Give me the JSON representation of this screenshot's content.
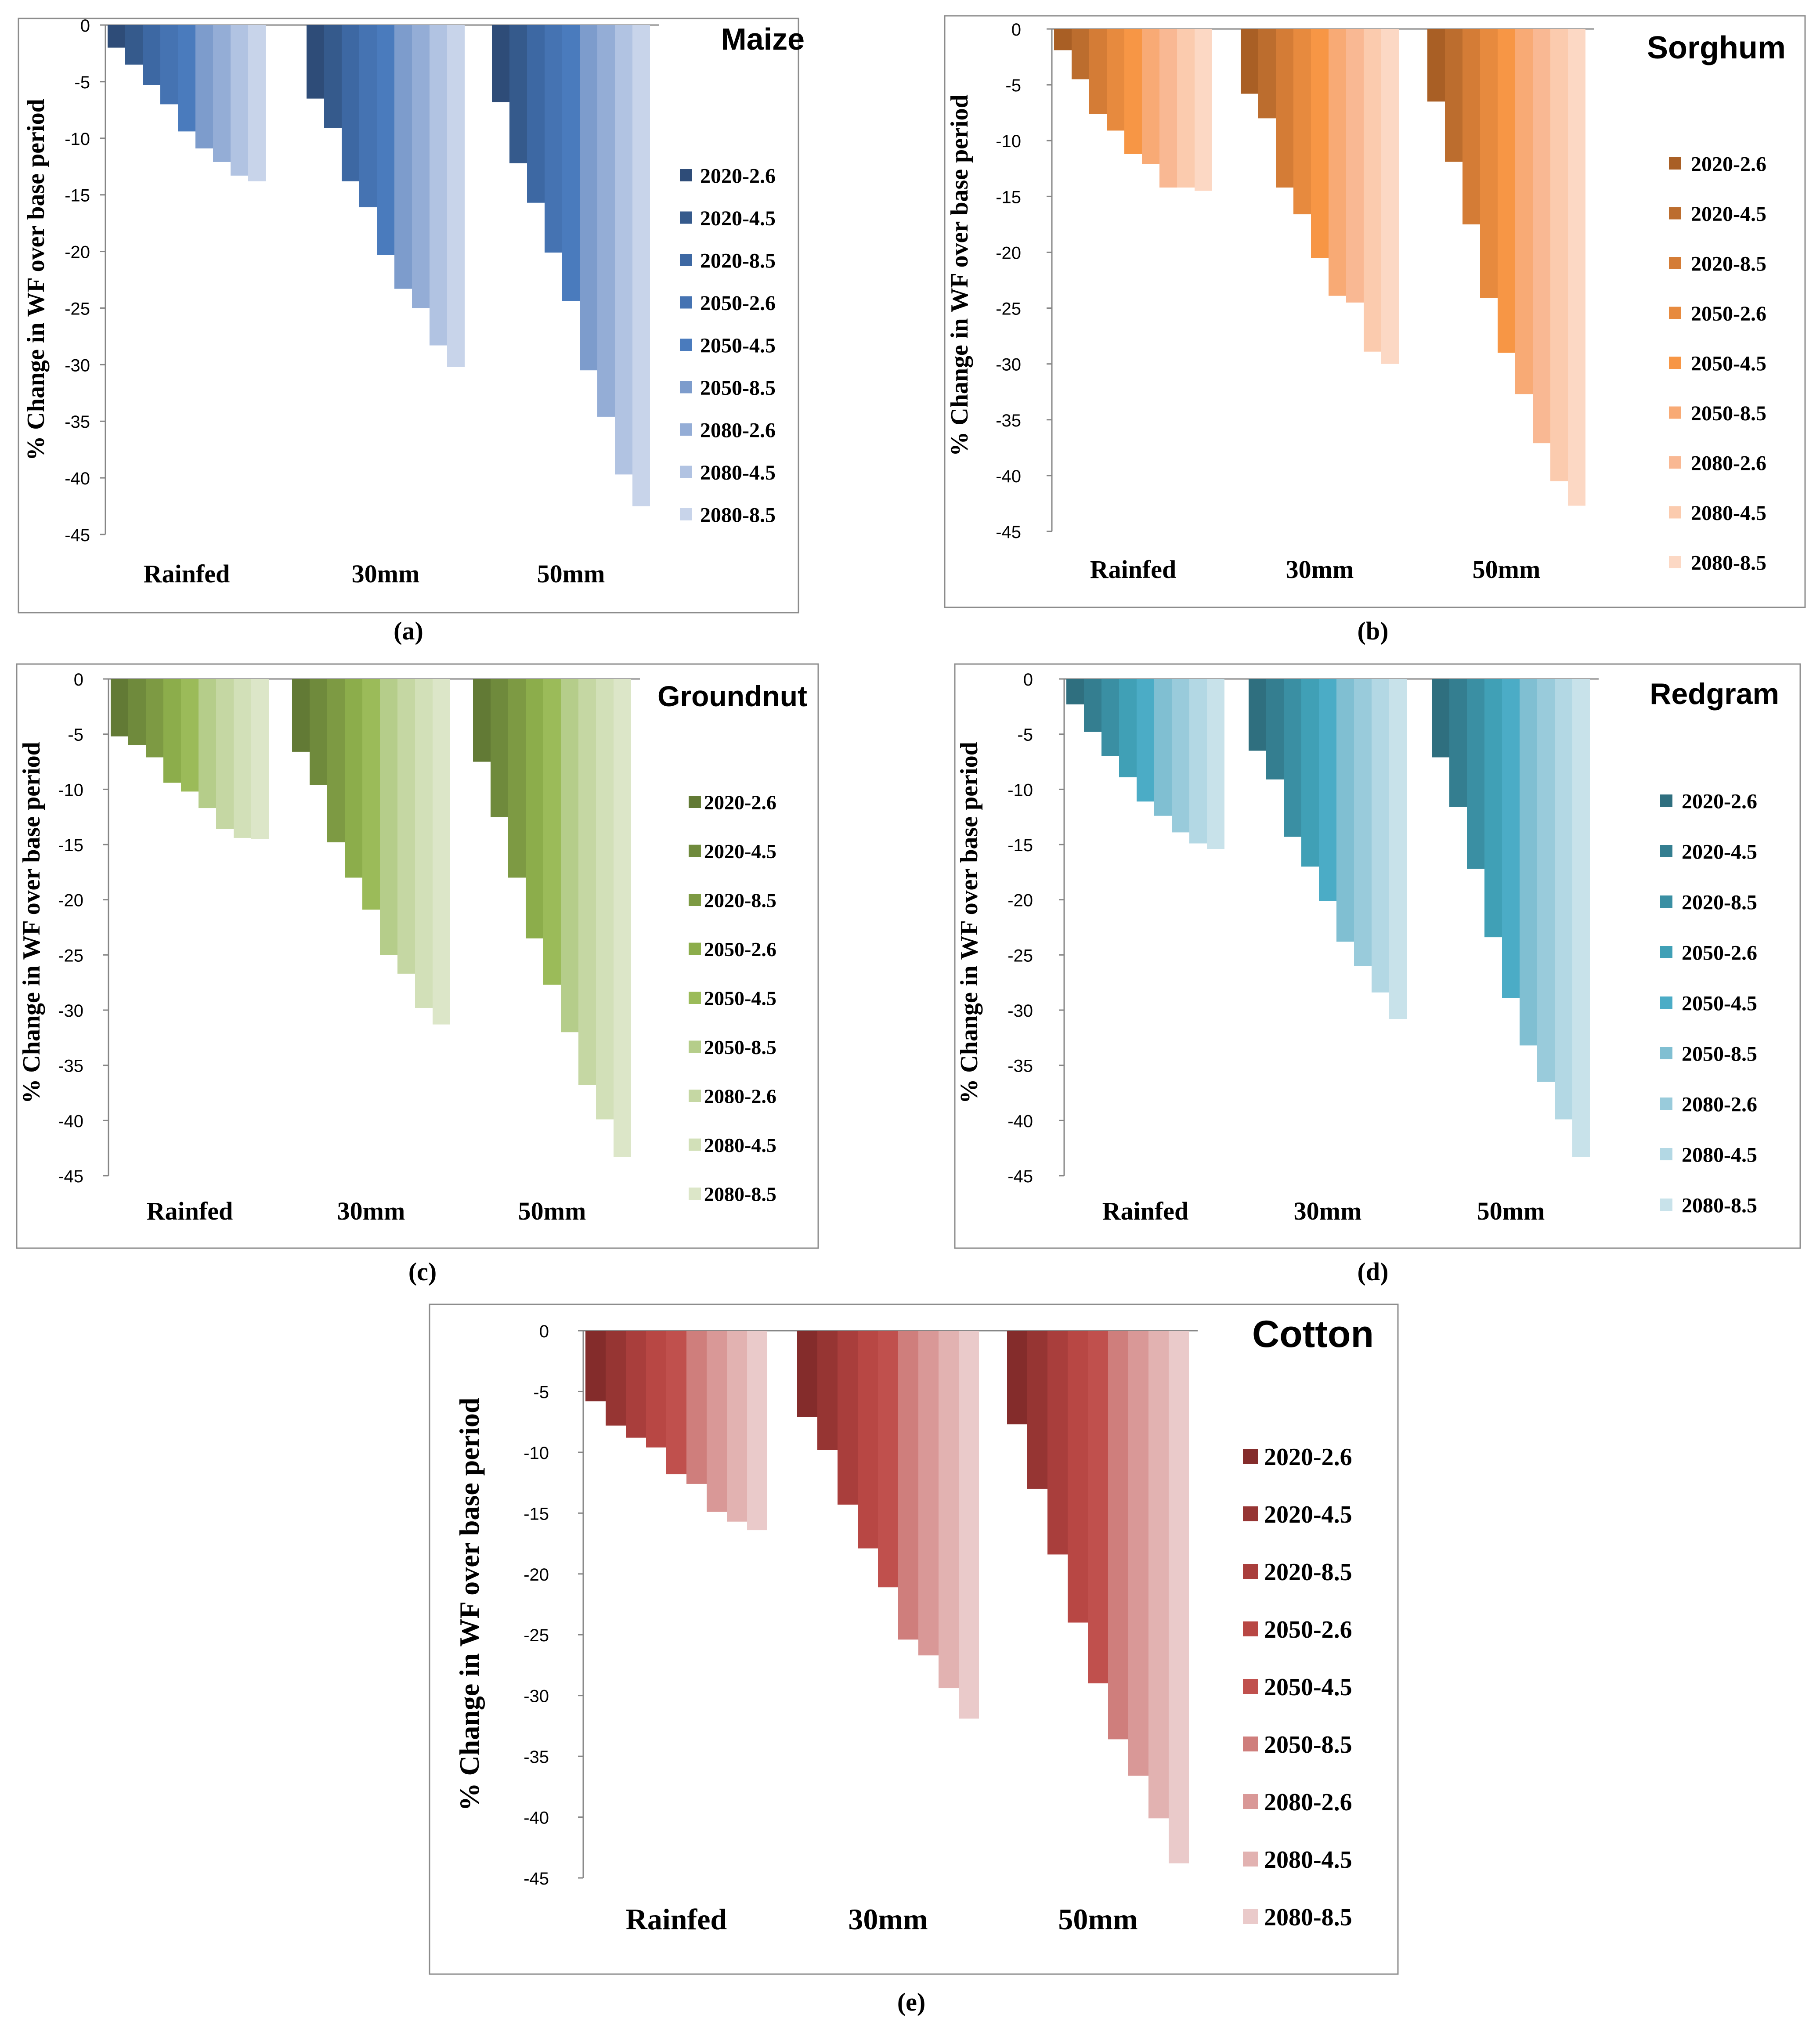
{
  "chart_data": [
    {
      "panel": "(a)",
      "type": "bar",
      "title": "Maize",
      "ylabel": "% Change in WF over base period",
      "xlabel": "",
      "ylim": [
        -45,
        0
      ],
      "yticks": [
        0,
        -5,
        -10,
        -15,
        -20,
        -25,
        -30,
        -35,
        -40,
        -45
      ],
      "categories": [
        "Rainfed",
        "30mm",
        "50mm"
      ],
      "legend_position": "right",
      "series": [
        {
          "name": "2020-2.6",
          "color": "#2e4c78",
          "values": [
            -2.0,
            -6.5,
            -6.8
          ]
        },
        {
          "name": "2020-4.5",
          "color": "#355a8c",
          "values": [
            -3.5,
            -9.1,
            -12.2
          ]
        },
        {
          "name": "2020-8.5",
          "color": "#3d68a3",
          "values": [
            -5.3,
            -13.8,
            -15.7
          ]
        },
        {
          "name": "2050-2.6",
          "color": "#4573b2",
          "values": [
            -7.0,
            -16.1,
            -20.1
          ]
        },
        {
          "name": "2050-4.5",
          "color": "#4a7bbd",
          "values": [
            -9.4,
            -20.3,
            -24.4
          ]
        },
        {
          "name": "2050-8.5",
          "color": "#7d9ccc",
          "values": [
            -10.9,
            -23.3,
            -30.5
          ]
        },
        {
          "name": "2080-2.6",
          "color": "#94add6",
          "values": [
            -12.1,
            -25.0,
            -34.6
          ]
        },
        {
          "name": "2080-4.5",
          "color": "#b1c3e2",
          "values": [
            -13.3,
            -28.3,
            -39.7
          ]
        },
        {
          "name": "2080-8.5",
          "color": "#c8d4ea",
          "values": [
            -13.8,
            -30.2,
            -42.5
          ]
        }
      ]
    },
    {
      "panel": "(b)",
      "type": "bar",
      "title": "Sorghum",
      "ylabel": "% Change in WF over base period",
      "xlabel": "",
      "ylim": [
        -45,
        0
      ],
      "yticks": [
        0,
        -5,
        -10,
        -15,
        -20,
        -25,
        -30,
        -35,
        -40,
        -45
      ],
      "categories": [
        "Rainfed",
        "30mm",
        "50mm"
      ],
      "legend_position": "right",
      "series": [
        {
          "name": "2020-2.6",
          "color": "#a95f25",
          "values": [
            -1.9,
            -5.8,
            -6.5
          ]
        },
        {
          "name": "2020-4.5",
          "color": "#bc6d2e",
          "values": [
            -4.5,
            -8.0,
            -11.9
          ]
        },
        {
          "name": "2020-8.5",
          "color": "#d47c36",
          "values": [
            -7.6,
            -14.2,
            -17.5
          ]
        },
        {
          "name": "2050-2.6",
          "color": "#e78a3e",
          "values": [
            -9.1,
            -16.6,
            -24.1
          ]
        },
        {
          "name": "2050-4.5",
          "color": "#f79645",
          "values": [
            -11.2,
            -20.5,
            -29.0
          ]
        },
        {
          "name": "2050-8.5",
          "color": "#f8aa75",
          "values": [
            -12.1,
            -23.9,
            -32.7
          ]
        },
        {
          "name": "2080-2.6",
          "color": "#f9b893",
          "values": [
            -14.2,
            -24.5,
            -37.1
          ]
        },
        {
          "name": "2080-4.5",
          "color": "#fbcbae",
          "values": [
            -14.2,
            -28.9,
            -40.5
          ]
        },
        {
          "name": "2080-8.5",
          "color": "#fcd8c4",
          "values": [
            -14.5,
            -30.0,
            -42.7
          ]
        }
      ]
    },
    {
      "panel": "(c)",
      "type": "bar",
      "title": "Groundnut",
      "ylabel": "% Change in WF over base period",
      "xlabel": "",
      "ylim": [
        -45,
        0
      ],
      "yticks": [
        0,
        -5,
        -10,
        -15,
        -20,
        -25,
        -30,
        -35,
        -40,
        -45
      ],
      "categories": [
        "Rainfed",
        "30mm",
        "50mm"
      ],
      "legend_position": "right",
      "series": [
        {
          "name": "2020-2.6",
          "color": "#627a35",
          "values": [
            -5.2,
            -6.6,
            -7.5
          ]
        },
        {
          "name": "2020-4.5",
          "color": "#6f8a3c",
          "values": [
            -6.0,
            -9.6,
            -12.5
          ]
        },
        {
          "name": "2020-8.5",
          "color": "#7d9a43",
          "values": [
            -7.1,
            -14.8,
            -18.0
          ]
        },
        {
          "name": "2050-2.6",
          "color": "#8cad4b",
          "values": [
            -9.4,
            -18.0,
            -23.5
          ]
        },
        {
          "name": "2050-4.5",
          "color": "#9bbb59",
          "values": [
            -10.2,
            -20.9,
            -27.7
          ]
        },
        {
          "name": "2050-8.5",
          "color": "#b5cd8a",
          "values": [
            -11.7,
            -25.0,
            -32.0
          ]
        },
        {
          "name": "2080-2.6",
          "color": "#c5d7a3",
          "values": [
            -13.6,
            -26.7,
            -36.8
          ]
        },
        {
          "name": "2080-4.5",
          "color": "#d2e0b8",
          "values": [
            -14.4,
            -29.8,
            -39.9
          ]
        },
        {
          "name": "2080-8.5",
          "color": "#dce6c8",
          "values": [
            -14.5,
            -31.3,
            -43.3
          ]
        }
      ]
    },
    {
      "panel": "(d)",
      "type": "bar",
      "title": "Redgram",
      "ylabel": "% Change in WF over base period",
      "xlabel": "",
      "ylim": [
        -45,
        0
      ],
      "yticks": [
        0,
        -5,
        -10,
        -15,
        -20,
        -25,
        -30,
        -35,
        -40,
        -45
      ],
      "categories": [
        "Rainfed",
        "30mm",
        "50mm"
      ],
      "legend_position": "right",
      "series": [
        {
          "name": "2020-2.6",
          "color": "#2f6f7f",
          "values": [
            -2.3,
            -6.5,
            -7.1
          ]
        },
        {
          "name": "2020-4.5",
          "color": "#347e90",
          "values": [
            -4.8,
            -9.1,
            -11.6
          ]
        },
        {
          "name": "2020-8.5",
          "color": "#3a8fa3",
          "values": [
            -7.0,
            -14.3,
            -17.2
          ]
        },
        {
          "name": "2050-2.6",
          "color": "#40a0b6",
          "values": [
            -8.9,
            -17.0,
            -23.4
          ]
        },
        {
          "name": "2050-4.5",
          "color": "#4bacc6",
          "values": [
            -11.1,
            -20.1,
            -28.9
          ]
        },
        {
          "name": "2050-8.5",
          "color": "#80bfd2",
          "values": [
            -12.4,
            -23.8,
            -33.2
          ]
        },
        {
          "name": "2080-2.6",
          "color": "#99cbdb",
          "values": [
            -13.9,
            -26.0,
            -36.5
          ]
        },
        {
          "name": "2080-4.5",
          "color": "#b3d8e4",
          "values": [
            -14.9,
            -28.4,
            -39.9
          ]
        },
        {
          "name": "2080-8.5",
          "color": "#c8e2ea",
          "values": [
            -15.4,
            -30.8,
            -43.3
          ]
        }
      ]
    },
    {
      "panel": "(e)",
      "type": "bar",
      "title": "Cotton",
      "ylabel": "% Change in WF over base period",
      "xlabel": "",
      "ylim": [
        -45,
        0
      ],
      "yticks": [
        0,
        -5,
        -10,
        -15,
        -20,
        -25,
        -30,
        -35,
        -40,
        -45
      ],
      "categories": [
        "Rainfed",
        "30mm",
        "50mm"
      ],
      "legend_position": "right",
      "series": [
        {
          "name": "2020-2.6",
          "color": "#842c2b",
          "values": [
            -5.8,
            -7.1,
            -7.7
          ]
        },
        {
          "name": "2020-4.5",
          "color": "#963533",
          "values": [
            -7.8,
            -9.8,
            -13.0
          ]
        },
        {
          "name": "2020-8.5",
          "color": "#a93e3c",
          "values": [
            -8.8,
            -14.3,
            -18.4
          ]
        },
        {
          "name": "2050-2.6",
          "color": "#b84744",
          "values": [
            -9.6,
            -17.9,
            -24.0
          ]
        },
        {
          "name": "2050-4.5",
          "color": "#c0504d",
          "values": [
            -11.8,
            -21.1,
            -29.0
          ]
        },
        {
          "name": "2050-8.5",
          "color": "#cf7e7c",
          "values": [
            -12.6,
            -25.4,
            -33.6
          ]
        },
        {
          "name": "2080-2.6",
          "color": "#d99897",
          "values": [
            -14.9,
            -26.7,
            -36.6
          ]
        },
        {
          "name": "2080-4.5",
          "color": "#e2b2b1",
          "values": [
            -15.7,
            -29.4,
            -40.1
          ]
        },
        {
          "name": "2080-8.5",
          "color": "#eacaca",
          "values": [
            -16.4,
            -31.9,
            -43.8
          ]
        }
      ]
    }
  ]
}
